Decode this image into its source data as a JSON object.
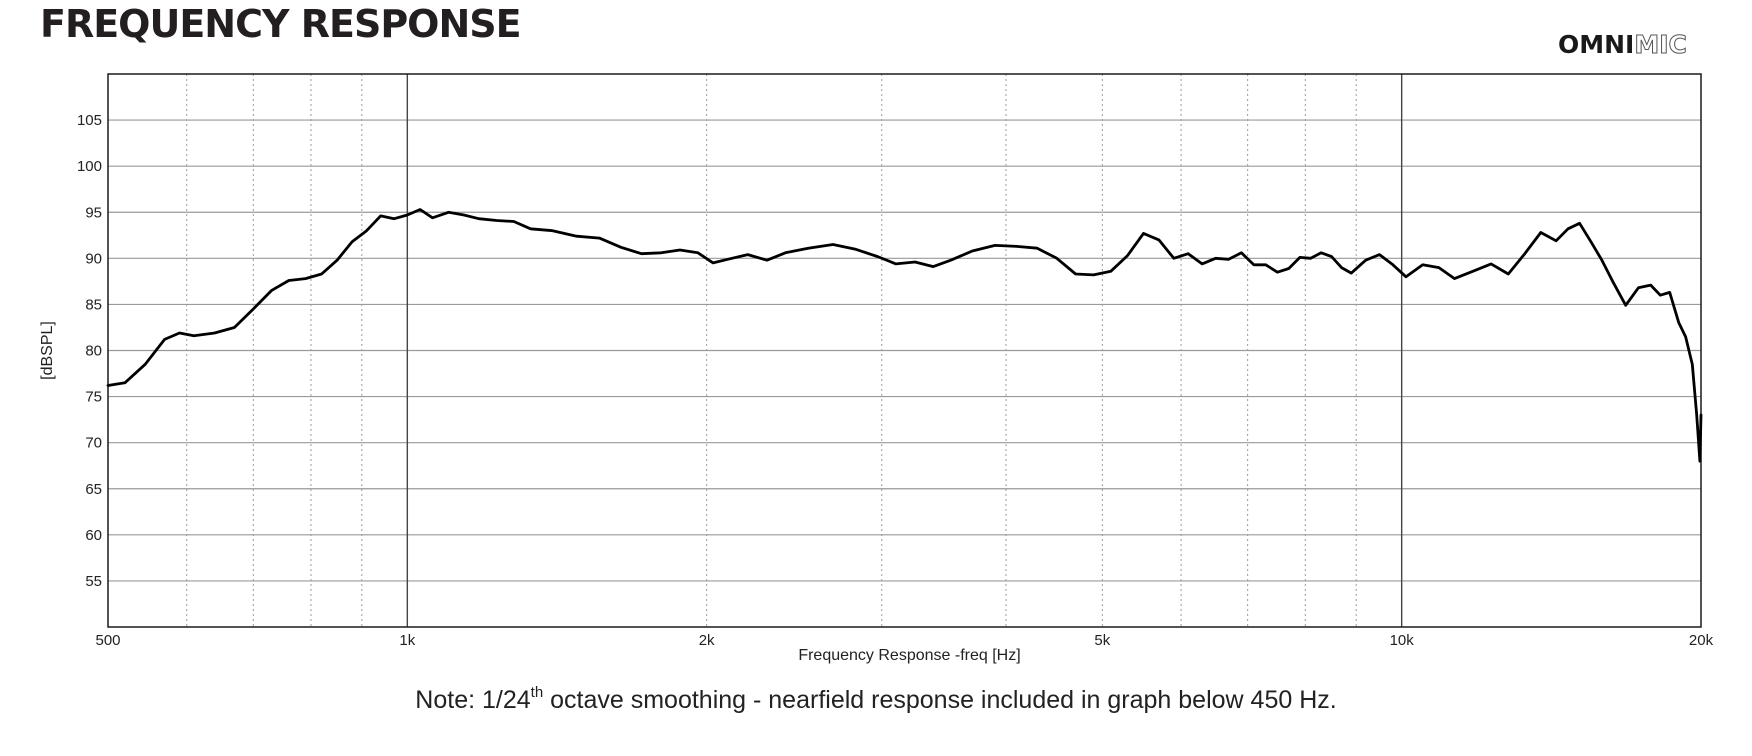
{
  "header": {
    "title": "FREQUENCY RESPONSE",
    "logo_bold": "OMNI",
    "logo_outline": "MIC"
  },
  "note": {
    "prefix": "Note: 1/24",
    "superscript": "th",
    "suffix": " octave smoothing - nearfield response included in graph below 450 Hz."
  },
  "chart_data": {
    "type": "line",
    "xscale": "log",
    "xlim": [
      500,
      20000
    ],
    "ylim": [
      50,
      110
    ],
    "xlabel": "Frequency Response -freq [Hz]",
    "ylabel": "[dBSPL]",
    "grid": true,
    "x_ticks": [
      {
        "value": 500,
        "label": "500"
      },
      {
        "value": 1000,
        "label": "1k"
      },
      {
        "value": 2000,
        "label": "2k"
      },
      {
        "value": 5000,
        "label": "5k"
      },
      {
        "value": 10000,
        "label": "10k"
      },
      {
        "value": 20000,
        "label": "20k"
      }
    ],
    "y_ticks": [
      55,
      60,
      65,
      70,
      75,
      80,
      85,
      90,
      95,
      100,
      105
    ],
    "line_color": "#000000",
    "series": [
      {
        "x": [
          500,
          520,
          545,
          570,
          590,
          610,
          640,
          670,
          700,
          730,
          760,
          790,
          820,
          850,
          880,
          910,
          940,
          970,
          1000,
          1030,
          1060,
          1100,
          1140,
          1180,
          1230,
          1280,
          1330,
          1400,
          1480,
          1560,
          1640,
          1720,
          1800,
          1880,
          1960,
          2030,
          2100,
          2200,
          2300,
          2400,
          2530,
          2680,
          2820,
          2970,
          3100,
          3240,
          3380,
          3520,
          3700,
          3900,
          4100,
          4300,
          4500,
          4700,
          4900,
          5100,
          5300,
          5500,
          5700,
          5900,
          6100,
          6300,
          6500,
          6700,
          6900,
          7100,
          7300,
          7500,
          7700,
          7900,
          8100,
          8300,
          8500,
          8700,
          8900,
          9200,
          9500,
          9800,
          10100,
          10500,
          10900,
          11300,
          11800,
          12300,
          12800,
          13300,
          13800,
          14300,
          14700,
          15100,
          15500,
          15900,
          16300,
          16800,
          17300,
          17800,
          18200,
          18600,
          19000,
          19300,
          19600,
          19800,
          19950,
          20000
        ],
        "y": [
          76.2,
          76.5,
          78.5,
          81.2,
          81.9,
          81.6,
          81.9,
          82.5,
          84.5,
          86.5,
          87.6,
          87.8,
          88.3,
          89.8,
          91.8,
          93.0,
          94.6,
          94.3,
          94.7,
          95.3,
          94.4,
          95.0,
          94.7,
          94.3,
          94.1,
          94.0,
          93.2,
          93.0,
          92.4,
          92.2,
          91.2,
          90.5,
          90.6,
          90.9,
          90.6,
          89.5,
          89.9,
          90.4,
          89.8,
          90.6,
          91.1,
          91.5,
          91.0,
          90.2,
          89.4,
          89.6,
          89.1,
          89.8,
          90.8,
          91.4,
          91.3,
          91.1,
          90.0,
          88.3,
          88.2,
          88.6,
          90.3,
          92.7,
          92.0,
          90.0,
          90.5,
          89.4,
          90.0,
          89.9,
          90.6,
          89.3,
          89.3,
          88.5,
          88.9,
          90.1,
          90.0,
          90.6,
          90.2,
          89.0,
          88.4,
          89.8,
          90.4,
          89.3,
          88.0,
          89.3,
          89.0,
          87.8,
          88.6,
          89.4,
          88.3,
          90.5,
          92.8,
          91.9,
          93.2,
          93.8,
          91.8,
          89.8,
          87.5,
          84.9,
          86.8,
          87.1,
          86.0,
          86.3,
          83.0,
          81.5,
          78.5,
          73.0,
          68.0,
          73.0
        ]
      }
    ]
  }
}
